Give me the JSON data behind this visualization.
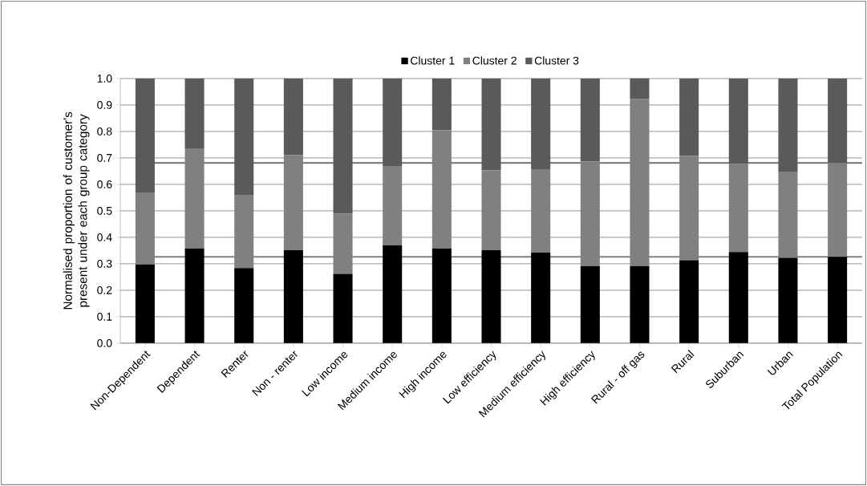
{
  "chart_data": {
    "type": "bar",
    "stacked": true,
    "ylabel": "Normalised proportion of customer's present under each group category",
    "categories": [
      "Non-Dependent",
      "Dependent",
      "Renter",
      "Non - renter",
      "Low income",
      "Medium income",
      "High income",
      "Low efficiency",
      "Medium efficiency",
      "High efficiency",
      "Rural - off gas",
      "Rural",
      "Suburban",
      "Urban",
      "Total Population"
    ],
    "series": [
      {
        "name": "Cluster 1",
        "color": "#000000",
        "values": [
          0.297,
          0.358,
          0.284,
          0.351,
          0.262,
          0.37,
          0.358,
          0.351,
          0.342,
          0.291,
          0.291,
          0.313,
          0.344,
          0.322,
          0.326
        ]
      },
      {
        "name": "Cluster 2",
        "color": "#808080",
        "values": [
          0.272,
          0.376,
          0.274,
          0.359,
          0.228,
          0.297,
          0.446,
          0.302,
          0.315,
          0.395,
          0.631,
          0.395,
          0.334,
          0.326,
          0.355
        ]
      },
      {
        "name": "Cluster 3",
        "color": "#5a5a5a",
        "values": [
          0.431,
          0.266,
          0.442,
          0.29,
          0.51,
          0.333,
          0.196,
          0.347,
          0.343,
          0.314,
          0.078,
          0.292,
          0.322,
          0.352,
          0.319
        ]
      }
    ],
    "ylim": [
      0,
      1
    ],
    "yticks": [
      {
        "value": 0,
        "label": "0.0"
      },
      {
        "value": 0.1,
        "label": "0.1"
      },
      {
        "value": 0.2,
        "label": "0.2"
      },
      {
        "value": 0.3,
        "label": "0.3"
      },
      {
        "value": 0.4,
        "label": "0.4"
      },
      {
        "value": 0.5,
        "label": "0.5"
      },
      {
        "value": 0.6,
        "label": "0.6"
      },
      {
        "value": 0.7,
        "label": "0.7"
      },
      {
        "value": 0.8,
        "label": "0.8"
      },
      {
        "value": 0.9,
        "label": "0.9"
      },
      {
        "value": 1,
        "label": "1.0"
      }
    ],
    "ref_lines": [
      {
        "axis": "y",
        "value": 0.326,
        "color": "#808080"
      },
      {
        "axis": "y",
        "value": 0.681,
        "color": "#808080"
      }
    ],
    "grid": "y",
    "legend": "top"
  }
}
